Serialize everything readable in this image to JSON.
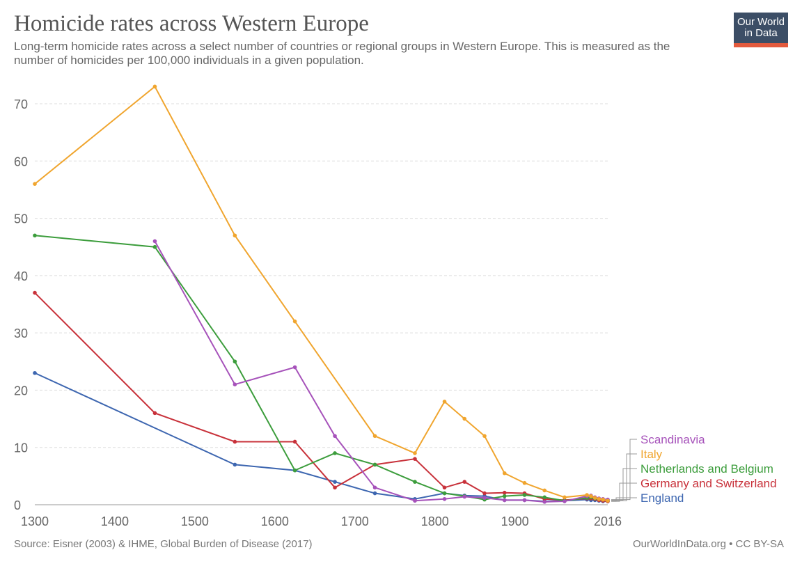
{
  "header": {
    "title": "Homicide rates across Western Europe",
    "subtitle": "Long-term homicide rates across a select number of countries or regional groups in Western Europe. This is measured as the number of homicides per 100,000 individuals in a given population."
  },
  "logo": {
    "line1": "Our World",
    "line2": "in Data",
    "bg": "#3c4e66",
    "accent": "#e35a3d"
  },
  "footer": {
    "source": "Source: Eisner (2003) & IHME, Global Burden of Disease (2017)",
    "credit": "OurWorldInData.org • CC BY-SA"
  },
  "chart_data": {
    "type": "line",
    "title": "Homicide rates across Western Europe",
    "xlim": [
      1300,
      2016
    ],
    "ylim": [
      0,
      70
    ],
    "x_ticks": [
      "1300",
      "1400",
      "1500",
      "1600",
      "1700",
      "1800",
      "1900",
      "2016"
    ],
    "y_ticks": [
      "0",
      "10",
      "20",
      "30",
      "40",
      "50",
      "60",
      "70"
    ],
    "grid": "horizontal dashed",
    "legend": "right, end-of-line labels",
    "series": [
      {
        "name": "Scandinavia",
        "color": "#a652ba",
        "points": [
          [
            1450,
            46
          ],
          [
            1550,
            21
          ],
          [
            1625,
            24
          ],
          [
            1675,
            12
          ],
          [
            1725,
            3
          ],
          [
            1775,
            0.7
          ],
          [
            1812,
            1
          ],
          [
            1837,
            1.4
          ],
          [
            1862,
            1.2
          ],
          [
            1887,
            0.8
          ],
          [
            1912,
            0.8
          ],
          [
            1937,
            0.5
          ],
          [
            1962,
            0.6
          ],
          [
            1990,
            1.5
          ],
          [
            1995,
            1.6
          ],
          [
            2000,
            1.3
          ],
          [
            2005,
            1.1
          ],
          [
            2010,
            1
          ],
          [
            2016,
            0.9
          ]
        ]
      },
      {
        "name": "Italy",
        "color": "#f0a52e",
        "points": [
          [
            1300,
            56
          ],
          [
            1450,
            73
          ],
          [
            1550,
            47
          ],
          [
            1625,
            32
          ],
          [
            1725,
            12
          ],
          [
            1775,
            9
          ],
          [
            1812,
            18
          ],
          [
            1837,
            15
          ],
          [
            1862,
            12
          ],
          [
            1887,
            5.5
          ],
          [
            1912,
            3.8
          ],
          [
            1937,
            2.5
          ],
          [
            1962,
            1.3
          ],
          [
            1990,
            1.7
          ],
          [
            1995,
            1.5
          ],
          [
            2000,
            1.2
          ],
          [
            2005,
            1
          ],
          [
            2010,
            0.9
          ],
          [
            2016,
            0.7
          ]
        ]
      },
      {
        "name": "Netherlands and Belgium",
        "color": "#3c9d3c",
        "points": [
          [
            1300,
            47
          ],
          [
            1450,
            45
          ],
          [
            1550,
            25
          ],
          [
            1625,
            6
          ],
          [
            1675,
            9
          ],
          [
            1725,
            7
          ],
          [
            1775,
            4
          ],
          [
            1812,
            2
          ],
          [
            1837,
            1.5
          ],
          [
            1862,
            0.9
          ],
          [
            1887,
            1.5
          ],
          [
            1912,
            1.7
          ],
          [
            1937,
            1.3
          ],
          [
            1962,
            0.7
          ],
          [
            1990,
            1.2
          ],
          [
            1995,
            1.3
          ],
          [
            2000,
            1.1
          ],
          [
            2005,
            1
          ],
          [
            2010,
            0.9
          ],
          [
            2016,
            0.8
          ]
        ]
      },
      {
        "name": "Germany and Switzerland",
        "color": "#c8313a",
        "points": [
          [
            1300,
            37
          ],
          [
            1450,
            16
          ],
          [
            1550,
            11
          ],
          [
            1625,
            11
          ],
          [
            1675,
            3
          ],
          [
            1725,
            7
          ],
          [
            1775,
            8
          ],
          [
            1812,
            3
          ],
          [
            1837,
            4
          ],
          [
            1862,
            2
          ],
          [
            1887,
            2.1
          ],
          [
            1912,
            2
          ],
          [
            1937,
            1
          ],
          [
            1962,
            0.8
          ],
          [
            1990,
            1.1
          ],
          [
            1995,
            1.1
          ],
          [
            2000,
            1
          ],
          [
            2005,
            0.8
          ],
          [
            2010,
            0.7
          ],
          [
            2016,
            0.6
          ]
        ]
      },
      {
        "name": "England",
        "color": "#3d66b0",
        "points": [
          [
            1300,
            23
          ],
          [
            1550,
            7
          ],
          [
            1625,
            6
          ],
          [
            1675,
            4
          ],
          [
            1725,
            2
          ],
          [
            1775,
            1
          ],
          [
            1812,
            2
          ],
          [
            1837,
            1.6
          ],
          [
            1862,
            1.5
          ],
          [
            1887,
            0.8
          ],
          [
            1912,
            0.8
          ],
          [
            1937,
            0.6
          ],
          [
            1962,
            0.7
          ],
          [
            1990,
            0.9
          ],
          [
            1995,
            0.8
          ],
          [
            2000,
            0.8
          ],
          [
            2005,
            0.7
          ],
          [
            2010,
            0.6
          ],
          [
            2016,
            0.6
          ]
        ]
      }
    ]
  }
}
